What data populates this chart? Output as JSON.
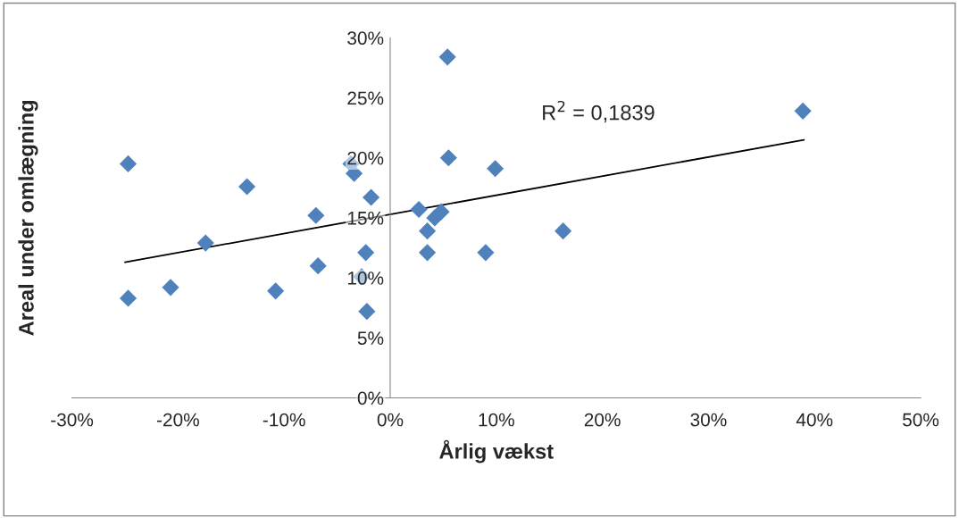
{
  "chart_data": {
    "type": "scatter",
    "xlabel": "Årlig vækst",
    "ylabel": "Areal under omlægning",
    "series": [
      {
        "color": "#4f81bd",
        "marker": "diamond",
        "x": [
          -24.7,
          -24.7,
          -20.7,
          -17.4,
          -13.5,
          -10.8,
          -7.0,
          -6.8,
          -3.7,
          -3.4,
          -2.7,
          -2.3,
          -2.2,
          -1.8,
          2.7,
          3.5,
          3.5,
          4.2,
          4.8,
          5.4,
          5.5,
          9.0,
          9.9,
          16.3,
          38.9
        ],
        "values": [
          19.5,
          8.3,
          9.2,
          12.9,
          17.6,
          8.9,
          15.2,
          11.0,
          19.5,
          18.7,
          10.1,
          12.1,
          7.2,
          16.7,
          15.7,
          13.9,
          12.1,
          15.0,
          15.5,
          28.4,
          20.0,
          12.1,
          19.1,
          13.9,
          23.9
        ]
      },
      {
        "type": "line",
        "color": "#000000",
        "x": [
          -25,
          39
        ],
        "values": [
          11.3,
          21.5
        ]
      }
    ],
    "annotations": [
      "R$^{2}$ = 0,1839"
    ],
    "xlim": [
      -30,
      50
    ],
    "ylim": [
      0,
      30
    ],
    "xticks": [
      {
        "value": -30,
        "label": "-30%"
      },
      {
        "value": -20,
        "label": "-20%"
      },
      {
        "value": -10,
        "label": "-10%"
      },
      {
        "value": 0,
        "label": "0%"
      },
      {
        "value": 10,
        "label": "10%"
      },
      {
        "value": 20,
        "label": "20%"
      },
      {
        "value": 30,
        "label": "30%"
      },
      {
        "value": 40,
        "label": "40%"
      },
      {
        "value": 50,
        "label": "50%"
      }
    ],
    "yticks": [
      {
        "value": 0,
        "label": "0%"
      },
      {
        "value": 5,
        "label": "5%"
      },
      {
        "value": 10,
        "label": "10%"
      },
      {
        "value": 15,
        "label": "15%"
      },
      {
        "value": 20,
        "label": "20%"
      },
      {
        "value": 25,
        "label": "25%"
      },
      {
        "value": 30,
        "label": "30%"
      }
    ],
    "grid": false,
    "legend": false
  }
}
